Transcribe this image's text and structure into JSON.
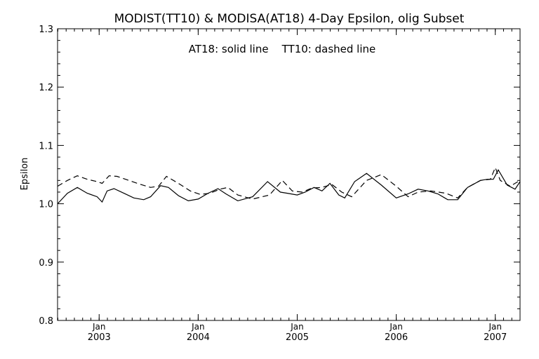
{
  "chart_data": {
    "type": "line",
    "title": "MODIST(TT10) & MODISA(AT18) 4-Day Epsilon, olig Subset",
    "annotation": "AT18: solid line    TT10: dashed line",
    "ylabel": "Epsilon",
    "xlabel": "",
    "ylim": [
      0.8,
      1.3
    ],
    "yticks": [
      "0.8",
      "0.9",
      "1.0",
      "1.1",
      "1.2",
      "1.3"
    ],
    "xlim": [
      2002.58,
      2007.25
    ],
    "xticks": [
      {
        "month": "Jan",
        "year": "2003",
        "x": 2003.0
      },
      {
        "month": "Jan",
        "year": "2004",
        "x": 2004.0
      },
      {
        "month": "Jan",
        "year": "2005",
        "x": 2005.0
      },
      {
        "month": "Jan",
        "year": "2006",
        "x": 2006.0
      },
      {
        "month": "Jan",
        "year": "2007",
        "x": 2007.0
      }
    ],
    "grid": false,
    "series": [
      {
        "name": "AT18",
        "style": "solid",
        "x": [
          2002.58,
          2002.68,
          2002.78,
          2002.88,
          2002.98,
          2003.03,
          2003.08,
          2003.15,
          2003.25,
          2003.35,
          2003.45,
          2003.52,
          2003.62,
          2003.7,
          2003.8,
          2003.9,
          2004.0,
          2004.1,
          2004.2,
          2004.28,
          2004.4,
          2004.55,
          2004.7,
          2004.83,
          2004.9,
          2005.0,
          2005.08,
          2005.17,
          2005.25,
          2005.33,
          2005.42,
          2005.48,
          2005.58,
          2005.7,
          2005.85,
          2006.0,
          2006.12,
          2006.22,
          2006.32,
          2006.42,
          2006.52,
          2006.62,
          2006.72,
          2006.85,
          2006.92,
          2006.98,
          2007.03,
          2007.12,
          2007.2,
          2007.25
        ],
        "values": [
          1.0,
          1.018,
          1.028,
          1.018,
          1.012,
          1.003,
          1.022,
          1.026,
          1.018,
          1.01,
          1.007,
          1.012,
          1.031,
          1.028,
          1.014,
          1.005,
          1.008,
          1.018,
          1.026,
          1.017,
          1.005,
          1.012,
          1.038,
          1.02,
          1.018,
          1.015,
          1.02,
          1.028,
          1.022,
          1.035,
          1.015,
          1.01,
          1.038,
          1.052,
          1.032,
          1.01,
          1.017,
          1.025,
          1.022,
          1.017,
          1.007,
          1.007,
          1.028,
          1.04,
          1.042,
          1.042,
          1.058,
          1.032,
          1.025,
          1.038
        ]
      },
      {
        "name": "TT10",
        "style": "dashed",
        "x": [
          2002.58,
          2002.68,
          2002.78,
          2002.88,
          2002.98,
          2003.03,
          2003.1,
          2003.18,
          2003.3,
          2003.42,
          2003.52,
          2003.6,
          2003.68,
          2003.8,
          2003.92,
          2004.02,
          2004.12,
          2004.22,
          2004.3,
          2004.4,
          2004.55,
          2004.72,
          2004.85,
          2004.95,
          2005.05,
          2005.15,
          2005.25,
          2005.35,
          2005.45,
          2005.55,
          2005.7,
          2005.85,
          2006.0,
          2006.12,
          2006.22,
          2006.35,
          2006.5,
          2006.62,
          2006.72,
          2006.85,
          2006.95,
          2007.0,
          2007.05,
          2007.15,
          2007.25
        ],
        "values": [
          1.03,
          1.04,
          1.048,
          1.042,
          1.038,
          1.035,
          1.048,
          1.047,
          1.04,
          1.033,
          1.028,
          1.03,
          1.047,
          1.035,
          1.022,
          1.016,
          1.018,
          1.025,
          1.028,
          1.015,
          1.008,
          1.015,
          1.04,
          1.022,
          1.02,
          1.027,
          1.028,
          1.033,
          1.02,
          1.012,
          1.04,
          1.05,
          1.03,
          1.012,
          1.02,
          1.022,
          1.018,
          1.01,
          1.028,
          1.04,
          1.042,
          1.062,
          1.04,
          1.03,
          1.04
        ]
      }
    ]
  }
}
